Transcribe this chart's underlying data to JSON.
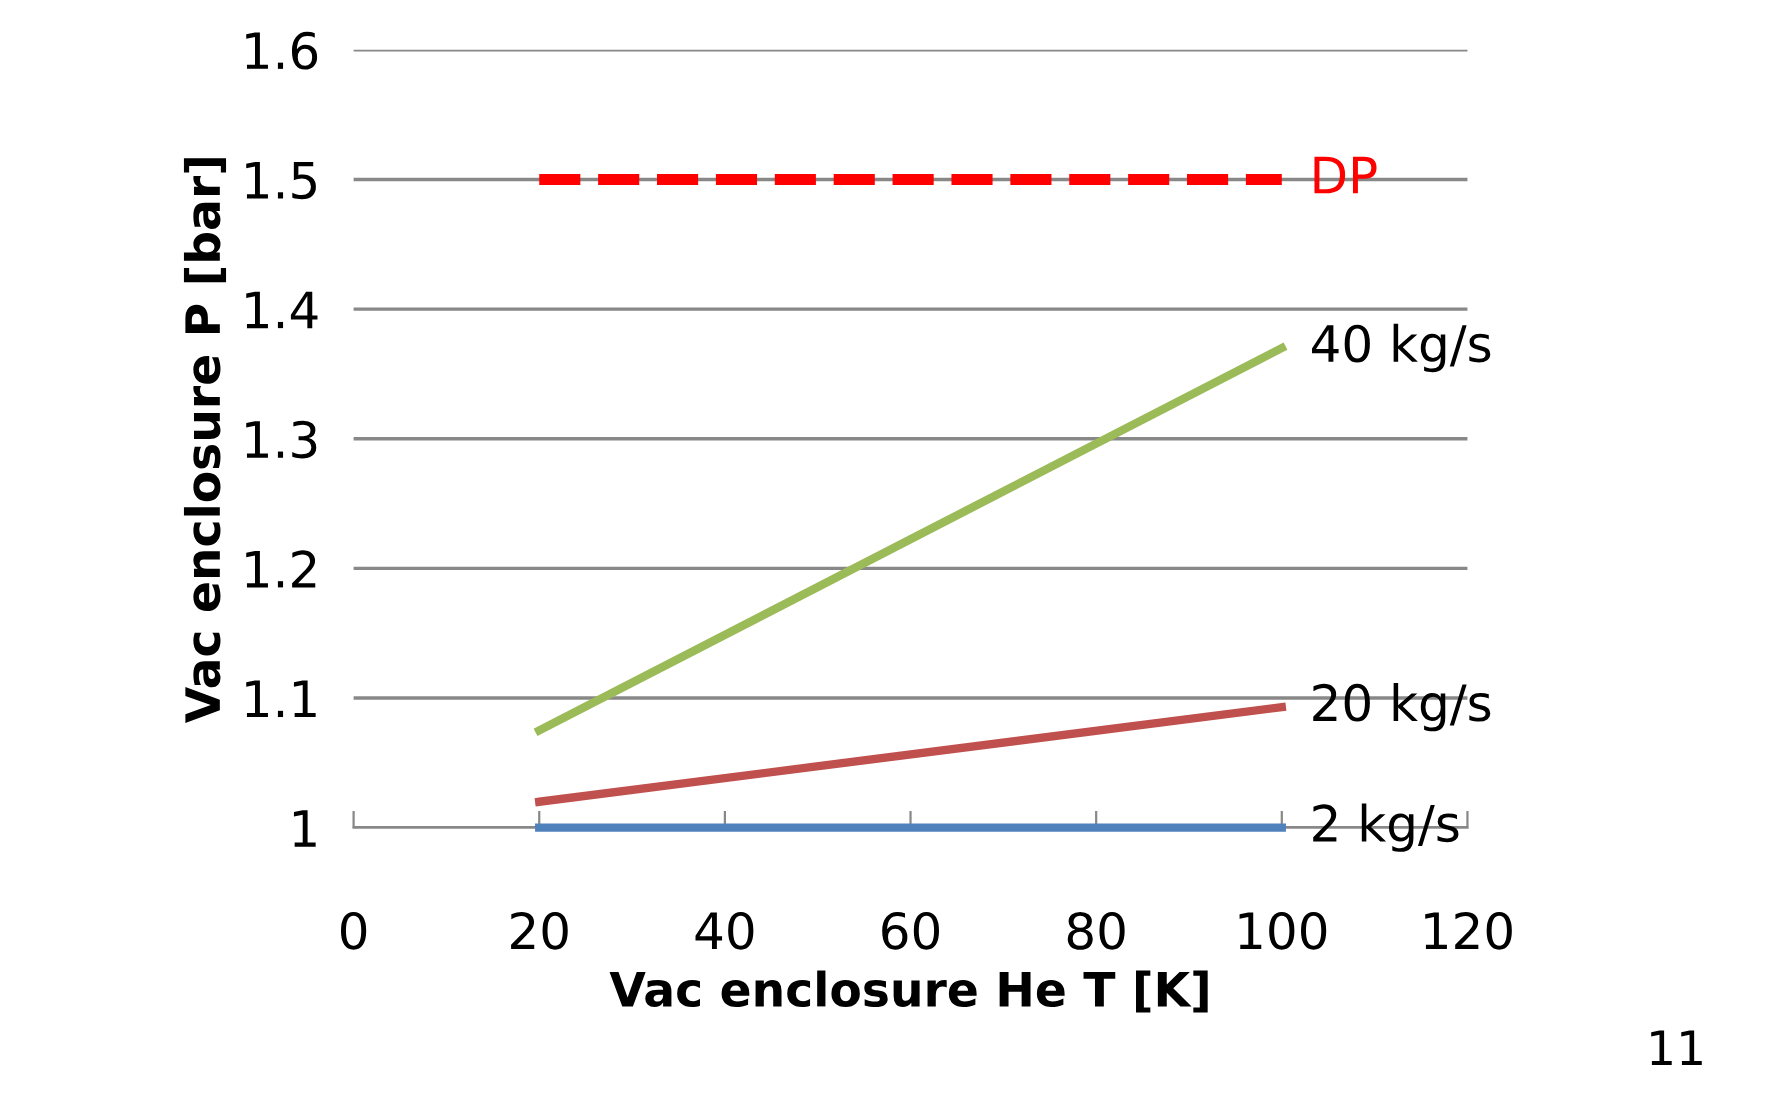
{
  "chart_data": {
    "type": "line",
    "xlabel": "Vac enclosure He T [K]",
    "ylabel": "Vac enclosure P [bar]",
    "xlim": [
      0,
      120
    ],
    "xticks": [
      0,
      20,
      40,
      60,
      80,
      100,
      120
    ],
    "ylim": [
      1,
      1.6
    ],
    "yticks": [
      1,
      {
        "value": 1.1,
        "label": "1.1"
      },
      {
        "value": 1.2,
        "label": "1.2"
      },
      {
        "value": 1.3,
        "label": "1.3"
      },
      {
        "value": 1.4,
        "label": "1.4"
      },
      {
        "value": 1.5,
        "label": "1.5"
      },
      {
        "value": 1.6,
        "label": "1.6"
      }
    ],
    "x": [
      20,
      100
    ],
    "grid": "y",
    "legend": false,
    "marker": "none",
    "series": [
      {
        "name": "DP",
        "color": "#ff0000",
        "line_style": "dashed",
        "values": [
          1.5,
          1.5
        ]
      },
      {
        "name": "40 kg/s",
        "color": "#9bbb59",
        "values": [
          1.075,
          1.37
        ]
      },
      {
        "name": "20 kg/s",
        "color": "#c0504d",
        "values": [
          1.02,
          1.093
        ]
      },
      {
        "name": "2 kg/s",
        "color": "#4f81bd",
        "values": [
          1.0,
          1.0
        ]
      }
    ],
    "annotations": [
      "11"
    ]
  }
}
